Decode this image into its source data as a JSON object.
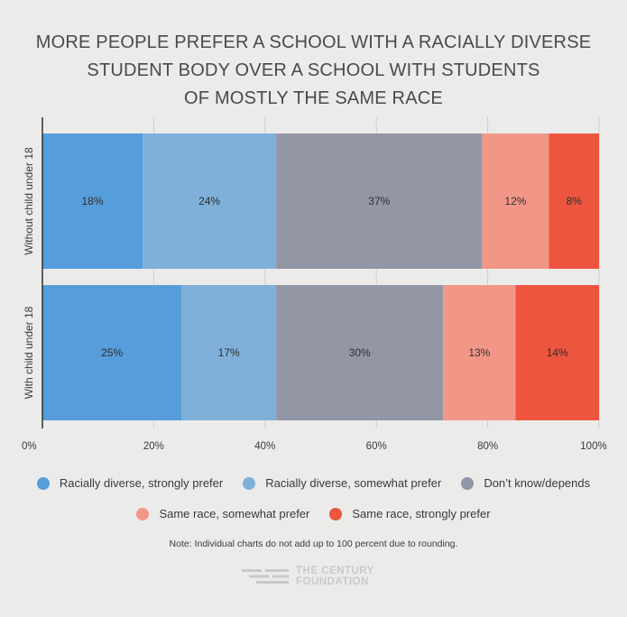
{
  "title_lines": [
    "MORE PEOPLE PREFER A SCHOOL WITH A RACIALLY DIVERSE",
    "STUDENT BODY OVER A SCHOOL WITH STUDENTS",
    "OF MOSTLY THE SAME RACE"
  ],
  "chart_data": {
    "type": "bar",
    "orientation": "horizontal",
    "stacked": true,
    "title": "MORE PEOPLE PREFER A SCHOOL WITH A RACIALLY DIVERSE STUDENT BODY OVER A SCHOOL WITH STUDENTS OF MOSTLY THE SAME RACE",
    "categories": [
      "Without child under 18",
      "With child under 18"
    ],
    "series": [
      {
        "name": "Racially diverse, strongly prefer",
        "color": "#559ddb",
        "values": [
          18,
          25
        ],
        "labels": [
          "18%",
          "25%"
        ]
      },
      {
        "name": "Racially diverse, somewhat prefer",
        "color": "#7fb0d9",
        "values": [
          24,
          17
        ],
        "labels": [
          "24%",
          "17%"
        ]
      },
      {
        "name": "Don’t know/depends",
        "color": "#9296a5",
        "values": [
          37,
          30
        ],
        "labels": [
          "37%",
          "30%"
        ]
      },
      {
        "name": "Same race, somewhat prefer",
        "color": "#f29788",
        "values": [
          12,
          13
        ],
        "labels": [
          "12%",
          "13%"
        ]
      },
      {
        "name": "Same race, strongly prefer",
        "color": "#ee553f",
        "values": [
          8,
          14
        ],
        "labels": [
          "8%",
          "14%"
        ]
      }
    ],
    "xlim": [
      0,
      100
    ],
    "xticks": [
      "0%",
      "20%",
      "40%",
      "60%",
      "80%",
      "100%"
    ],
    "legend_position": "bottom"
  },
  "note": "Note: Individual charts do not add up to 100 percent due to rounding.",
  "logo": {
    "line1": "THE CENTURY",
    "line2": "FOUNDATION"
  }
}
